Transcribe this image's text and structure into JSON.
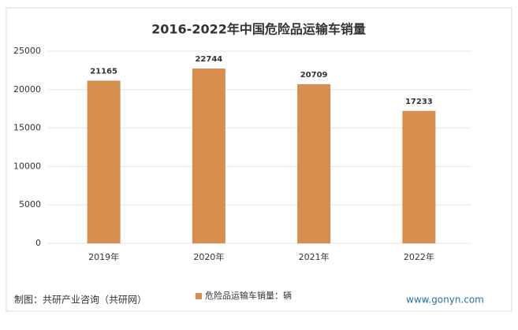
{
  "chart_data": {
    "type": "bar",
    "title": "2016-2022年中国危险品运输车销量",
    "categories": [
      "2019年",
      "2020年",
      "2021年",
      "2022年"
    ],
    "series": [
      {
        "name": "危险品运输车销量：辆",
        "color": "#d68e4e",
        "values": [
          21165,
          22744,
          20709,
          17233
        ]
      }
    ],
    "ylim": [
      0,
      25000
    ],
    "yticks": [
      0,
      5000,
      10000,
      15000,
      20000,
      25000
    ],
    "grid": true,
    "legend": "bottom",
    "source": "制图：共研产业咨询（共研网）",
    "watermark": "www.gonyn.com"
  }
}
